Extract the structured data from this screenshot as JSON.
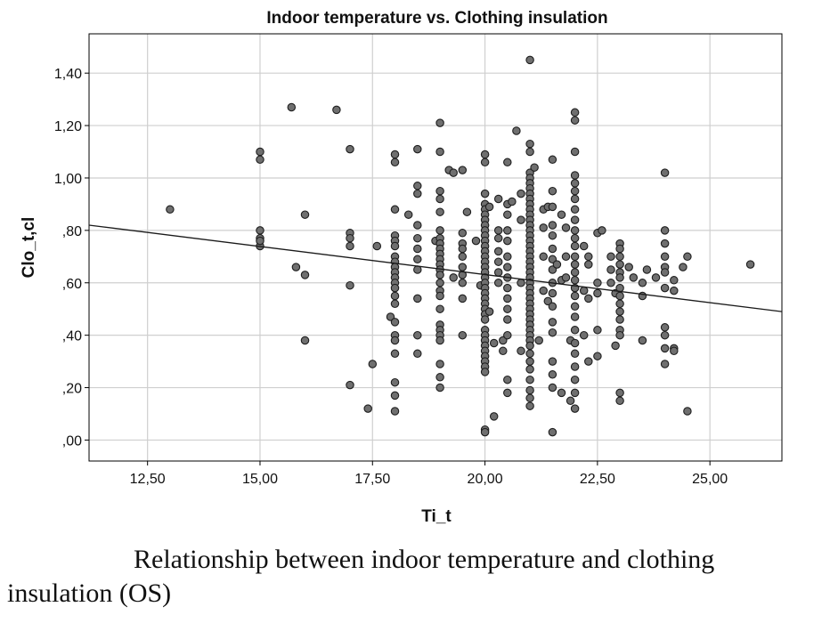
{
  "chart_data": {
    "type": "scatter",
    "title": "Indoor temperature vs. Clothing insulation",
    "xlabel": "Ti_t",
    "ylabel": "Clo_t,cl",
    "xlim": [
      11.2,
      26.6
    ],
    "ylim": [
      -0.08,
      1.55
    ],
    "xticks": [
      12.5,
      15.0,
      17.5,
      20.0,
      22.5,
      25.0
    ],
    "xtick_labels": [
      "12,50",
      "15,00",
      "17,50",
      "20,00",
      "22,50",
      "25,00"
    ],
    "yticks": [
      0.0,
      0.2,
      0.4,
      0.6,
      0.8,
      1.0,
      1.2,
      1.4
    ],
    "ytick_labels": [
      ",00",
      ",20",
      ",40",
      ",60",
      ",80",
      "1,00",
      "1,20",
      "1,40"
    ],
    "grid": true,
    "fit_line": {
      "type": "linear",
      "x": [
        11.2,
        26.6
      ],
      "y": [
        0.82,
        0.49
      ]
    },
    "points": [
      [
        13.0,
        0.88
      ],
      [
        15.0,
        1.1
      ],
      [
        15.0,
        1.07
      ],
      [
        15.0,
        0.8
      ],
      [
        15.0,
        0.77
      ],
      [
        15.0,
        0.74
      ],
      [
        15.0,
        0.76
      ],
      [
        15.7,
        1.27
      ],
      [
        15.8,
        0.66
      ],
      [
        16.0,
        0.86
      ],
      [
        16.0,
        0.63
      ],
      [
        16.0,
        0.38
      ],
      [
        16.7,
        1.26
      ],
      [
        17.0,
        1.11
      ],
      [
        17.0,
        0.79
      ],
      [
        17.0,
        0.77
      ],
      [
        17.0,
        0.74
      ],
      [
        17.0,
        0.59
      ],
      [
        17.0,
        0.21
      ],
      [
        17.4,
        0.12
      ],
      [
        17.5,
        0.29
      ],
      [
        17.6,
        0.74
      ],
      [
        17.9,
        0.47
      ],
      [
        18.0,
        1.09
      ],
      [
        18.0,
        1.06
      ],
      [
        18.0,
        0.88
      ],
      [
        18.0,
        0.78
      ],
      [
        18.0,
        0.76
      ],
      [
        18.0,
        0.74
      ],
      [
        18.0,
        0.7
      ],
      [
        18.0,
        0.68
      ],
      [
        18.0,
        0.66
      ],
      [
        18.0,
        0.64
      ],
      [
        18.0,
        0.62
      ],
      [
        18.0,
        0.6
      ],
      [
        18.0,
        0.58
      ],
      [
        18.0,
        0.55
      ],
      [
        18.0,
        0.52
      ],
      [
        18.0,
        0.45
      ],
      [
        18.0,
        0.4
      ],
      [
        18.0,
        0.38
      ],
      [
        18.0,
        0.33
      ],
      [
        18.0,
        0.22
      ],
      [
        18.0,
        0.17
      ],
      [
        18.0,
        0.11
      ],
      [
        18.3,
        0.86
      ],
      [
        18.5,
        1.11
      ],
      [
        18.5,
        0.97
      ],
      [
        18.5,
        0.94
      ],
      [
        18.5,
        0.82
      ],
      [
        18.5,
        0.77
      ],
      [
        18.5,
        0.73
      ],
      [
        18.5,
        0.69
      ],
      [
        18.5,
        0.65
      ],
      [
        18.5,
        0.54
      ],
      [
        18.5,
        0.4
      ],
      [
        18.5,
        0.33
      ],
      [
        18.9,
        0.76
      ],
      [
        19.0,
        1.21
      ],
      [
        19.0,
        1.1
      ],
      [
        19.0,
        0.95
      ],
      [
        19.0,
        0.92
      ],
      [
        19.0,
        0.87
      ],
      [
        19.0,
        0.8
      ],
      [
        19.0,
        0.77
      ],
      [
        19.0,
        0.75
      ],
      [
        19.0,
        0.73
      ],
      [
        19.0,
        0.71
      ],
      [
        19.0,
        0.69
      ],
      [
        19.0,
        0.67
      ],
      [
        19.0,
        0.65
      ],
      [
        19.0,
        0.63
      ],
      [
        19.0,
        0.6
      ],
      [
        19.0,
        0.57
      ],
      [
        19.0,
        0.55
      ],
      [
        19.0,
        0.5
      ],
      [
        19.0,
        0.44
      ],
      [
        19.0,
        0.42
      ],
      [
        19.0,
        0.4
      ],
      [
        19.0,
        0.38
      ],
      [
        19.0,
        0.29
      ],
      [
        19.0,
        0.24
      ],
      [
        19.0,
        0.2
      ],
      [
        19.2,
        1.03
      ],
      [
        19.3,
        1.02
      ],
      [
        19.3,
        0.62
      ],
      [
        19.5,
        1.03
      ],
      [
        19.5,
        0.79
      ],
      [
        19.5,
        0.75
      ],
      [
        19.5,
        0.73
      ],
      [
        19.5,
        0.7
      ],
      [
        19.5,
        0.66
      ],
      [
        19.5,
        0.63
      ],
      [
        19.5,
        0.6
      ],
      [
        19.5,
        0.54
      ],
      [
        19.5,
        0.4
      ],
      [
        19.6,
        0.87
      ],
      [
        19.8,
        0.76
      ],
      [
        19.9,
        0.59
      ],
      [
        20.0,
        1.09
      ],
      [
        20.0,
        1.06
      ],
      [
        20.0,
        0.94
      ],
      [
        20.0,
        0.9
      ],
      [
        20.0,
        0.88
      ],
      [
        20.0,
        0.86
      ],
      [
        20.0,
        0.84
      ],
      [
        20.0,
        0.82
      ],
      [
        20.0,
        0.8
      ],
      [
        20.0,
        0.78
      ],
      [
        20.0,
        0.76
      ],
      [
        20.0,
        0.74
      ],
      [
        20.0,
        0.72
      ],
      [
        20.0,
        0.7
      ],
      [
        20.0,
        0.68
      ],
      [
        20.0,
        0.66
      ],
      [
        20.0,
        0.64
      ],
      [
        20.0,
        0.62
      ],
      [
        20.0,
        0.6
      ],
      [
        20.0,
        0.58
      ],
      [
        20.0,
        0.56
      ],
      [
        20.0,
        0.54
      ],
      [
        20.0,
        0.52
      ],
      [
        20.0,
        0.5
      ],
      [
        20.0,
        0.48
      ],
      [
        20.0,
        0.46
      ],
      [
        20.0,
        0.42
      ],
      [
        20.0,
        0.4
      ],
      [
        20.0,
        0.38
      ],
      [
        20.0,
        0.36
      ],
      [
        20.0,
        0.34
      ],
      [
        20.0,
        0.32
      ],
      [
        20.0,
        0.3
      ],
      [
        20.0,
        0.28
      ],
      [
        20.0,
        0.26
      ],
      [
        20.0,
        0.04
      ],
      [
        20.0,
        0.03
      ],
      [
        20.1,
        0.89
      ],
      [
        20.1,
        0.49
      ],
      [
        20.2,
        0.37
      ],
      [
        20.2,
        0.09
      ],
      [
        20.3,
        0.92
      ],
      [
        20.3,
        0.8
      ],
      [
        20.3,
        0.77
      ],
      [
        20.3,
        0.72
      ],
      [
        20.3,
        0.68
      ],
      [
        20.3,
        0.64
      ],
      [
        20.3,
        0.6
      ],
      [
        20.4,
        0.38
      ],
      [
        20.4,
        0.34
      ],
      [
        20.5,
        1.06
      ],
      [
        20.5,
        0.9
      ],
      [
        20.5,
        0.86
      ],
      [
        20.5,
        0.8
      ],
      [
        20.5,
        0.76
      ],
      [
        20.5,
        0.7
      ],
      [
        20.5,
        0.66
      ],
      [
        20.5,
        0.62
      ],
      [
        20.5,
        0.58
      ],
      [
        20.5,
        0.54
      ],
      [
        20.5,
        0.5
      ],
      [
        20.5,
        0.46
      ],
      [
        20.5,
        0.4
      ],
      [
        20.5,
        0.23
      ],
      [
        20.5,
        0.18
      ],
      [
        20.6,
        0.91
      ],
      [
        20.7,
        1.18
      ],
      [
        20.8,
        0.94
      ],
      [
        20.8,
        0.84
      ],
      [
        20.8,
        0.6
      ],
      [
        20.8,
        0.34
      ],
      [
        21.0,
        1.45
      ],
      [
        21.0,
        1.13
      ],
      [
        21.0,
        1.1
      ],
      [
        21.0,
        1.02
      ],
      [
        21.0,
        1.0
      ],
      [
        21.0,
        0.98
      ],
      [
        21.0,
        0.96
      ],
      [
        21.0,
        0.94
      ],
      [
        21.0,
        0.92
      ],
      [
        21.0,
        0.9
      ],
      [
        21.0,
        0.88
      ],
      [
        21.0,
        0.86
      ],
      [
        21.0,
        0.84
      ],
      [
        21.0,
        0.82
      ],
      [
        21.0,
        0.8
      ],
      [
        21.0,
        0.78
      ],
      [
        21.0,
        0.76
      ],
      [
        21.0,
        0.74
      ],
      [
        21.0,
        0.72
      ],
      [
        21.0,
        0.7
      ],
      [
        21.0,
        0.68
      ],
      [
        21.0,
        0.66
      ],
      [
        21.0,
        0.64
      ],
      [
        21.0,
        0.62
      ],
      [
        21.0,
        0.6
      ],
      [
        21.0,
        0.58
      ],
      [
        21.0,
        0.56
      ],
      [
        21.0,
        0.54
      ],
      [
        21.0,
        0.52
      ],
      [
        21.0,
        0.5
      ],
      [
        21.0,
        0.48
      ],
      [
        21.0,
        0.46
      ],
      [
        21.0,
        0.44
      ],
      [
        21.0,
        0.42
      ],
      [
        21.0,
        0.4
      ],
      [
        21.0,
        0.38
      ],
      [
        21.0,
        0.36
      ],
      [
        21.0,
        0.33
      ],
      [
        21.0,
        0.3
      ],
      [
        21.0,
        0.27
      ],
      [
        21.0,
        0.23
      ],
      [
        21.0,
        0.19
      ],
      [
        21.0,
        0.16
      ],
      [
        21.0,
        0.13
      ],
      [
        21.1,
        1.04
      ],
      [
        21.2,
        0.38
      ],
      [
        21.3,
        0.88
      ],
      [
        21.3,
        0.81
      ],
      [
        21.3,
        0.7
      ],
      [
        21.3,
        0.57
      ],
      [
        21.4,
        0.89
      ],
      [
        21.4,
        0.53
      ],
      [
        21.5,
        1.07
      ],
      [
        21.5,
        0.95
      ],
      [
        21.5,
        0.89
      ],
      [
        21.5,
        0.82
      ],
      [
        21.5,
        0.78
      ],
      [
        21.5,
        0.73
      ],
      [
        21.5,
        0.69
      ],
      [
        21.5,
        0.65
      ],
      [
        21.5,
        0.6
      ],
      [
        21.5,
        0.56
      ],
      [
        21.5,
        0.51
      ],
      [
        21.5,
        0.45
      ],
      [
        21.5,
        0.41
      ],
      [
        21.5,
        0.3
      ],
      [
        21.5,
        0.25
      ],
      [
        21.5,
        0.2
      ],
      [
        21.5,
        0.03
      ],
      [
        21.6,
        0.67
      ],
      [
        21.7,
        0.86
      ],
      [
        21.7,
        0.61
      ],
      [
        21.7,
        0.18
      ],
      [
        21.8,
        0.81
      ],
      [
        21.8,
        0.7
      ],
      [
        21.8,
        0.62
      ],
      [
        21.9,
        0.38
      ],
      [
        21.9,
        0.15
      ],
      [
        22.0,
        1.25
      ],
      [
        22.0,
        1.22
      ],
      [
        22.0,
        1.1
      ],
      [
        22.0,
        1.01
      ],
      [
        22.0,
        0.98
      ],
      [
        22.0,
        0.95
      ],
      [
        22.0,
        0.92
      ],
      [
        22.0,
        0.88
      ],
      [
        22.0,
        0.84
      ],
      [
        22.0,
        0.8
      ],
      [
        22.0,
        0.77
      ],
      [
        22.0,
        0.74
      ],
      [
        22.0,
        0.7
      ],
      [
        22.0,
        0.67
      ],
      [
        22.0,
        0.64
      ],
      [
        22.0,
        0.61
      ],
      [
        22.0,
        0.58
      ],
      [
        22.0,
        0.55
      ],
      [
        22.0,
        0.51
      ],
      [
        22.0,
        0.47
      ],
      [
        22.0,
        0.42
      ],
      [
        22.0,
        0.37
      ],
      [
        22.0,
        0.33
      ],
      [
        22.0,
        0.28
      ],
      [
        22.0,
        0.23
      ],
      [
        22.0,
        0.18
      ],
      [
        22.0,
        0.12
      ],
      [
        22.2,
        0.74
      ],
      [
        22.2,
        0.57
      ],
      [
        22.2,
        0.4
      ],
      [
        22.3,
        0.7
      ],
      [
        22.3,
        0.67
      ],
      [
        22.3,
        0.54
      ],
      [
        22.3,
        0.3
      ],
      [
        22.5,
        0.79
      ],
      [
        22.5,
        0.6
      ],
      [
        22.5,
        0.56
      ],
      [
        22.5,
        0.42
      ],
      [
        22.5,
        0.32
      ],
      [
        22.6,
        0.8
      ],
      [
        22.8,
        0.7
      ],
      [
        22.8,
        0.65
      ],
      [
        22.8,
        0.6
      ],
      [
        22.9,
        0.56
      ],
      [
        22.9,
        0.36
      ],
      [
        23.0,
        0.75
      ],
      [
        23.0,
        0.73
      ],
      [
        23.0,
        0.7
      ],
      [
        23.0,
        0.67
      ],
      [
        23.0,
        0.64
      ],
      [
        23.0,
        0.62
      ],
      [
        23.0,
        0.58
      ],
      [
        23.0,
        0.55
      ],
      [
        23.0,
        0.52
      ],
      [
        23.0,
        0.49
      ],
      [
        23.0,
        0.46
      ],
      [
        23.0,
        0.42
      ],
      [
        23.0,
        0.4
      ],
      [
        23.0,
        0.18
      ],
      [
        23.0,
        0.15
      ],
      [
        23.2,
        0.66
      ],
      [
        23.3,
        0.62
      ],
      [
        23.5,
        0.6
      ],
      [
        23.5,
        0.38
      ],
      [
        23.5,
        0.55
      ],
      [
        23.6,
        0.65
      ],
      [
        23.8,
        0.62
      ],
      [
        24.0,
        1.02
      ],
      [
        24.0,
        0.8
      ],
      [
        24.0,
        0.75
      ],
      [
        24.0,
        0.7
      ],
      [
        24.0,
        0.66
      ],
      [
        24.0,
        0.64
      ],
      [
        24.0,
        0.58
      ],
      [
        24.0,
        0.43
      ],
      [
        24.0,
        0.4
      ],
      [
        24.0,
        0.35
      ],
      [
        24.0,
        0.29
      ],
      [
        24.2,
        0.61
      ],
      [
        24.2,
        0.57
      ],
      [
        24.2,
        0.35
      ],
      [
        24.2,
        0.34
      ],
      [
        24.4,
        0.66
      ],
      [
        24.5,
        0.7
      ],
      [
        24.5,
        0.11
      ],
      [
        25.9,
        0.67
      ]
    ]
  },
  "caption": "Relationship between indoor temperature and clothing insulation (OS)",
  "colors": {
    "background": "#ffffff",
    "grid": "#cfcfcf",
    "axis": "#000000",
    "point_fill": "#6f6f6f",
    "point_stroke": "#1e1e1e",
    "fit_line": "#1a1a1a",
    "text": "#111111"
  }
}
